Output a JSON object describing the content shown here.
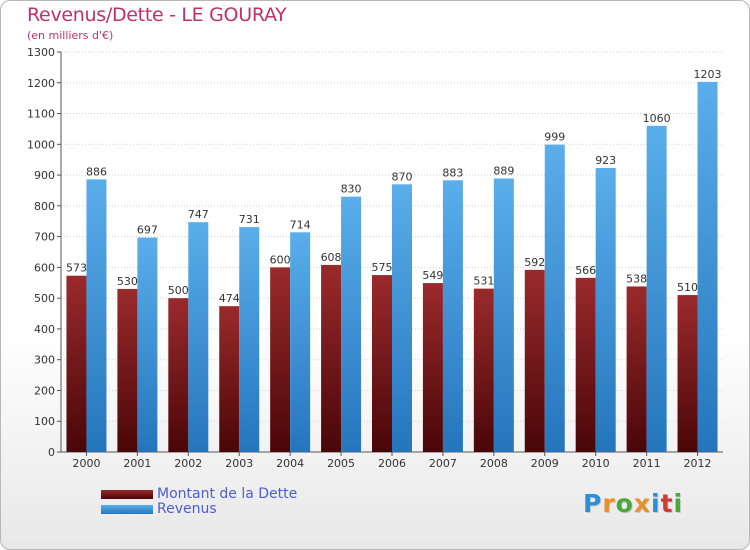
{
  "title": "Revenus/Dette - LE GOURAY",
  "subtitle": "(en milliers d'€)",
  "logo": "Proxiti",
  "colors": {
    "dette": "#7a1518",
    "revenus": "#3d95dc",
    "title": "#c0306a",
    "legend_text": "#4a5dd6"
  },
  "chart_data": {
    "type": "bar",
    "categories": [
      "2000",
      "2001",
      "2002",
      "2003",
      "2004",
      "2005",
      "2006",
      "2007",
      "2008",
      "2009",
      "2010",
      "2011",
      "2012"
    ],
    "series": [
      {
        "name": "Montant de la Dette",
        "values": [
          573,
          530,
          500,
          474,
          600,
          608,
          575,
          549,
          531,
          592,
          566,
          538,
          510
        ]
      },
      {
        "name": "Revenus",
        "values": [
          886,
          697,
          747,
          731,
          714,
          830,
          870,
          883,
          889,
          999,
          923,
          1060,
          1203
        ]
      }
    ],
    "ylim": [
      0,
      1300
    ],
    "yticks": [
      0,
      100,
      200,
      300,
      400,
      500,
      600,
      700,
      800,
      900,
      1000,
      1100,
      1200,
      1300
    ],
    "grid": true,
    "legend_position": "bottom-left"
  }
}
